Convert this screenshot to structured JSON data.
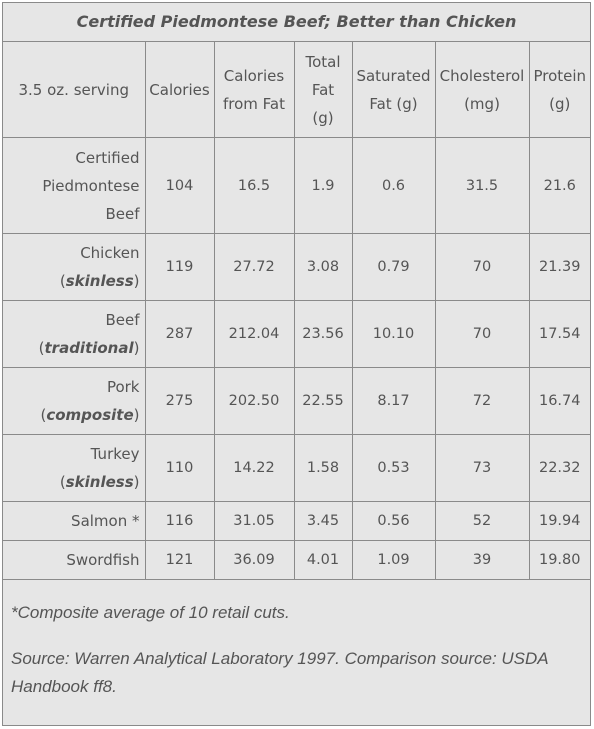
{
  "title": "Certified Piedmontese Beef; Better than Chicken",
  "headers": {
    "serving": "3.5 oz. serving",
    "calories": "Calories",
    "calories_fat": [
      "Calories",
      "from Fat"
    ],
    "total_fat": [
      "Total",
      "Fat",
      "(g)"
    ],
    "sat_fat": [
      "Saturated",
      "Fat (g)"
    ],
    "cholesterol": [
      "Cholesterol",
      "(mg)"
    ],
    "protein": [
      "Protein",
      "(g)"
    ]
  },
  "rows": [
    {
      "label": [
        "Certified",
        "Piedmontese",
        "Beef"
      ],
      "qual": "",
      "values": [
        "104",
        "16.5",
        "1.9",
        "0.6",
        "31.5",
        "21.6"
      ]
    },
    {
      "label": [
        "Chicken"
      ],
      "qual": "skinless",
      "values": [
        "119",
        "27.72",
        "3.08",
        "0.79",
        "70",
        "21.39"
      ]
    },
    {
      "label": [
        "Beef"
      ],
      "qual": "traditional",
      "values": [
        "287",
        "212.04",
        "23.56",
        "10.10",
        "70",
        "17.54"
      ]
    },
    {
      "label": [
        "Pork"
      ],
      "qual": "composite",
      "values": [
        "275",
        "202.50",
        "22.55",
        "8.17",
        "72",
        "16.74"
      ]
    },
    {
      "label": [
        "Turkey"
      ],
      "qual": "skinless",
      "values": [
        "110",
        "14.22",
        "1.58",
        "0.53",
        "73",
        "22.32"
      ]
    },
    {
      "label": [
        "Salmon *"
      ],
      "qual": "",
      "values": [
        "116",
        "31.05",
        "3.45",
        "0.56",
        "52",
        "19.94"
      ]
    },
    {
      "label": [
        "Swordfish"
      ],
      "qual": "",
      "values": [
        "121",
        "36.09",
        "4.01",
        "1.09",
        "39",
        "19.80"
      ]
    }
  ],
  "footnotes": {
    "composite": "*Composite average of 10 retail cuts.",
    "source": "Source: Warren Analytical Laboratory 1997. Comparison source: USDA Handbook ff8."
  }
}
